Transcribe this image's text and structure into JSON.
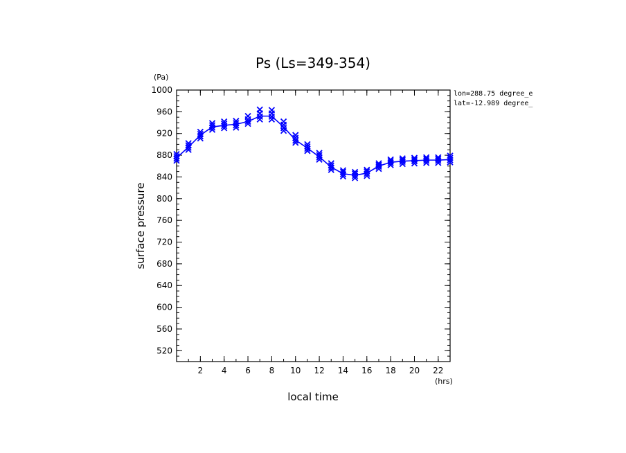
{
  "chart_data": {
    "type": "line",
    "title": "Ps (Ls=349-354)",
    "xlabel": "local time",
    "ylabel": "surface pressure",
    "x_unit": "(hrs)",
    "y_unit": "(Pa)",
    "annotations": [
      "lon=288.75 degree_e",
      "lat=-12.989 degree_"
    ],
    "xlim": [
      0,
      23
    ],
    "ylim": [
      500,
      1000
    ],
    "xticks": [
      2,
      4,
      6,
      8,
      10,
      12,
      14,
      16,
      18,
      20,
      22
    ],
    "yticks": [
      520,
      560,
      600,
      640,
      680,
      720,
      760,
      800,
      840,
      880,
      920,
      960,
      1000
    ],
    "grid": false,
    "color": "#0000ff",
    "series": [
      {
        "marker": "x",
        "x": [
          0,
          1,
          2,
          3,
          4,
          5,
          6,
          7,
          8,
          9,
          10,
          11,
          12,
          13,
          14,
          15,
          16,
          17,
          18,
          19,
          20,
          21,
          22,
          23
        ],
        "values": [
          875,
          895,
          917,
          932,
          935,
          937,
          942,
          952,
          952,
          932,
          908,
          893,
          877,
          858,
          846,
          843,
          847,
          860,
          867,
          869,
          870,
          871,
          871,
          872
        ]
      }
    ],
    "scatter_spread": [
      [
        870,
        874,
        878,
        882
      ],
      [
        890,
        894,
        898,
        902
      ],
      [
        911,
        915,
        919,
        923
      ],
      [
        927,
        931,
        935,
        939
      ],
      [
        930,
        934,
        938,
        942
      ],
      [
        931,
        935,
        939,
        943
      ],
      [
        938,
        942,
        946,
        952
      ],
      [
        946,
        951,
        957,
        964
      ],
      [
        946,
        951,
        957,
        963
      ],
      [
        925,
        930,
        936,
        942
      ],
      [
        903,
        907,
        912,
        917
      ],
      [
        888,
        892,
        896,
        900
      ],
      [
        872,
        876,
        880,
        884
      ],
      [
        853,
        857,
        861,
        865
      ],
      [
        841,
        845,
        849,
        852
      ],
      [
        838,
        842,
        846,
        849
      ],
      [
        842,
        846,
        850,
        853
      ],
      [
        855,
        859,
        862,
        865
      ],
      [
        862,
        866,
        869,
        872
      ],
      [
        864,
        868,
        871,
        874
      ],
      [
        865,
        869,
        872,
        875
      ],
      [
        866,
        870,
        873,
        876
      ],
      [
        866,
        870,
        873,
        876
      ],
      [
        867,
        871,
        875,
        879
      ]
    ]
  }
}
